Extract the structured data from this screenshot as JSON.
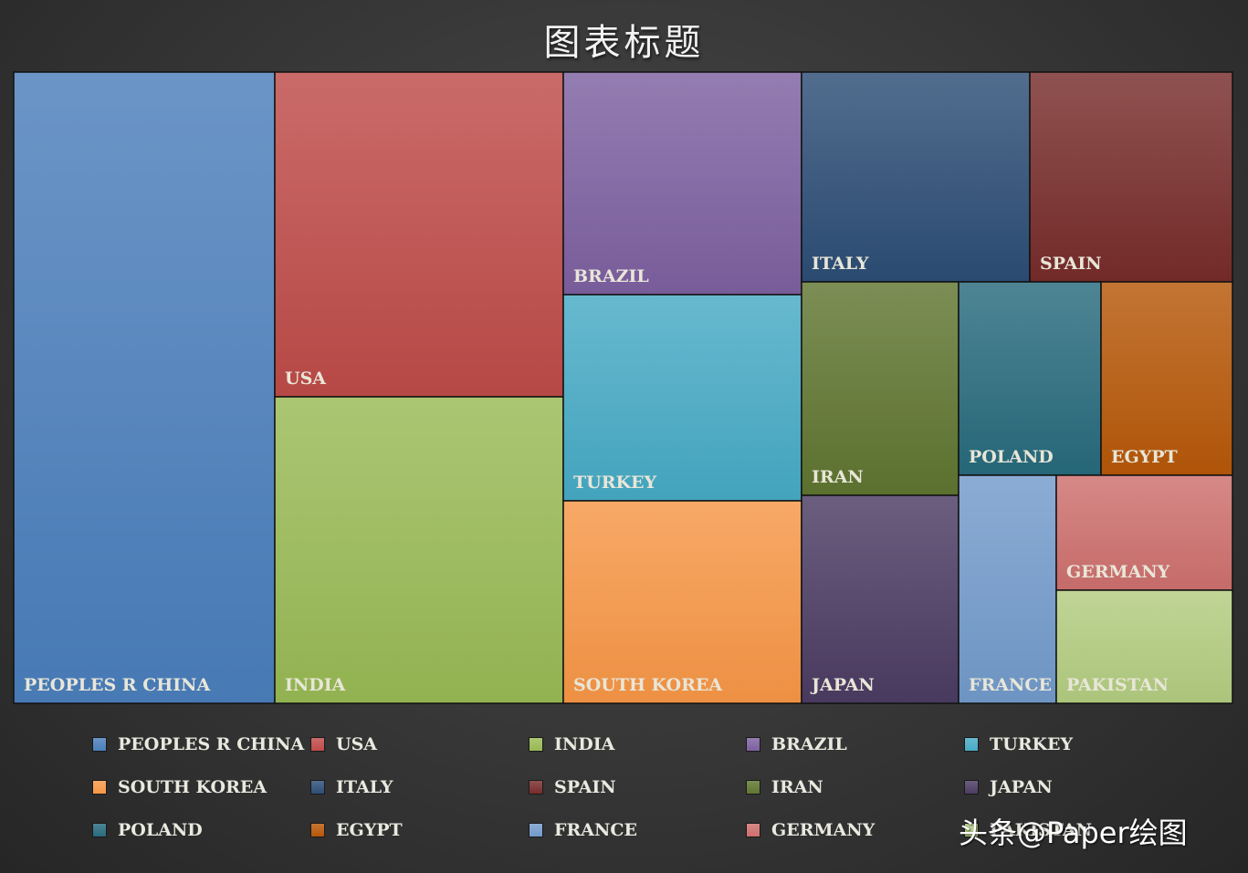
{
  "chart_data": {
    "type": "treemap",
    "title": "图表标题",
    "items": [
      {
        "name": "PEOPLES R CHINA",
        "value": 197,
        "color": "#4a7ebb"
      },
      {
        "name": "USA",
        "value": 112,
        "color": "#be4b48"
      },
      {
        "name": "INDIA",
        "value": 106,
        "color": "#98b954"
      },
      {
        "name": "BRAZIL",
        "value": 63,
        "color": "#7d60a0"
      },
      {
        "name": "TURKEY",
        "value": 59,
        "color": "#46aac5"
      },
      {
        "name": "SOUTH KOREA",
        "value": 57,
        "color": "#f79646"
      },
      {
        "name": "ITALY",
        "value": 57,
        "color": "#2c4d75"
      },
      {
        "name": "SPAIN",
        "value": 51,
        "color": "#772c2a"
      },
      {
        "name": "IRAN",
        "value": 37,
        "color": "#5f7530"
      },
      {
        "name": "JAPAN",
        "value": 39,
        "color": "#4b3b62"
      },
      {
        "name": "POLAND",
        "value": 33,
        "color": "#276a7c"
      },
      {
        "name": "EGYPT",
        "value": 33,
        "color": "#b65708"
      },
      {
        "name": "FRANCE",
        "value": 26,
        "color": "#729aca"
      },
      {
        "name": "GERMANY",
        "value": 24,
        "color": "#cd6f6d"
      },
      {
        "name": "PAKISTAN",
        "value": 24,
        "color": "#b2cc7f"
      }
    ],
    "legend": "bottom",
    "grid": false
  },
  "watermark": "头条@Paper绘图"
}
